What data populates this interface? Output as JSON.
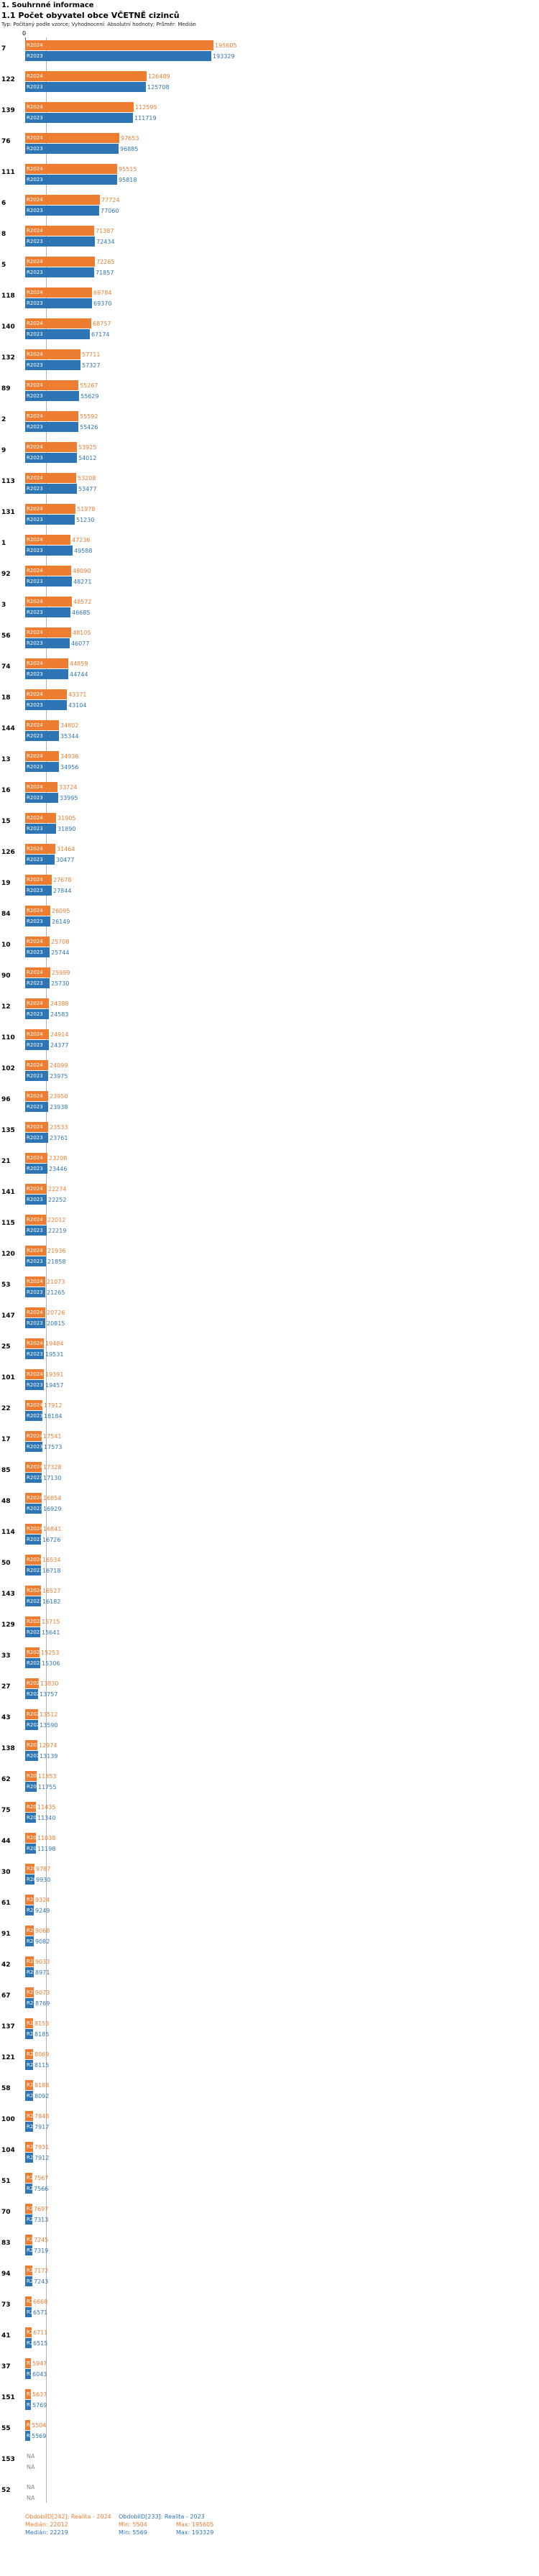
{
  "page": {
    "section_title": "1. Souhrnné informace",
    "chart_title": "1.1 Počet obyvatel obce VČETNĚ cizinců",
    "subtitle": "Typ: Počítaný podle vzorce; Vyhodnocení: Absolutní hodnoty; Průměr: Medián"
  },
  "chart_data": {
    "type": "bar",
    "orientation": "horizontal",
    "title": "1.1 Počet obyvatel obce VČETNĚ cizinců",
    "xlabel": "",
    "ylabel": "ID obce",
    "axis": {
      "zero_label": "0",
      "median_line_value": 22012
    },
    "legend_position": "bottom",
    "grid": false,
    "series": [
      {
        "name": "R2024",
        "period_label": "ObdobíID[242]: Realita - 2024",
        "color": "#ED7D31",
        "median": 22012,
        "min": 5504,
        "max": 195605
      },
      {
        "name": "R2023",
        "period_label": "ObdobíID[233]: Realita - 2023",
        "color": "#2E75B6",
        "median": 22219,
        "min": 5569,
        "max": 193329
      }
    ],
    "rows": [
      {
        "label": "7",
        "r2024": 195605,
        "r2023": 193329
      },
      {
        "label": "122",
        "r2024": 126489,
        "r2023": 125708
      },
      {
        "label": "139",
        "r2024": 112595,
        "r2023": 111719
      },
      {
        "label": "76",
        "r2024": 97653,
        "r2023": 96885
      },
      {
        "label": "111",
        "r2024": 95515,
        "r2023": 95818
      },
      {
        "label": "6",
        "r2024": 77724,
        "r2023": 77060
      },
      {
        "label": "8",
        "r2024": 71387,
        "r2023": 72434
      },
      {
        "label": "5",
        "r2024": 72265,
        "r2023": 71857
      },
      {
        "label": "118",
        "r2024": 69784,
        "r2023": 69370
      },
      {
        "label": "140",
        "r2024": 68757,
        "r2023": 67174
      },
      {
        "label": "132",
        "r2024": 57711,
        "r2023": 57327
      },
      {
        "label": "89",
        "r2024": 55267,
        "r2023": 55629
      },
      {
        "label": "2",
        "r2024": 55592,
        "r2023": 55426
      },
      {
        "label": "9",
        "r2024": 53925,
        "r2023": 54012
      },
      {
        "label": "113",
        "r2024": 53208,
        "r2023": 53477
      },
      {
        "label": "131",
        "r2024": 51978,
        "r2023": 51230
      },
      {
        "label": "1",
        "r2024": 47236,
        "r2023": 49588
      },
      {
        "label": "92",
        "r2024": 48090,
        "r2023": 48271
      },
      {
        "label": "3",
        "r2024": 48572,
        "r2023": 46685
      },
      {
        "label": "56",
        "r2024": 48105,
        "r2023": 46077
      },
      {
        "label": "74",
        "r2024": 44859,
        "r2023": 44744
      },
      {
        "label": "18",
        "r2024": 43371,
        "r2023": 43104
      },
      {
        "label": "144",
        "r2024": 34802,
        "r2023": 35344
      },
      {
        "label": "13",
        "r2024": 34936,
        "r2023": 34956
      },
      {
        "label": "16",
        "r2024": 33724,
        "r2023": 33995
      },
      {
        "label": "15",
        "r2024": 31905,
        "r2023": 31890
      },
      {
        "label": "126",
        "r2024": 31464,
        "r2023": 30477
      },
      {
        "label": "19",
        "r2024": 27678,
        "r2023": 27844
      },
      {
        "label": "84",
        "r2024": 26095,
        "r2023": 26149
      },
      {
        "label": "10",
        "r2024": 25708,
        "r2023": 25744
      },
      {
        "label": "90",
        "r2024": 25999,
        "r2023": 25730
      },
      {
        "label": "12",
        "r2024": 24388,
        "r2023": 24583
      },
      {
        "label": "110",
        "r2024": 24914,
        "r2023": 24377
      },
      {
        "label": "102",
        "r2024": 24099,
        "r2023": 23975
      },
      {
        "label": "96",
        "r2024": 23950,
        "r2023": 23938
      },
      {
        "label": "135",
        "r2024": 23533,
        "r2023": 23761
      },
      {
        "label": "21",
        "r2024": 23208,
        "r2023": 23446
      },
      {
        "label": "141",
        "r2024": 22274,
        "r2023": 22252
      },
      {
        "label": "115",
        "r2024": 22012,
        "r2023": 22219
      },
      {
        "label": "120",
        "r2024": 21936,
        "r2023": 21858
      },
      {
        "label": "53",
        "r2024": 21073,
        "r2023": 21265
      },
      {
        "label": "147",
        "r2024": 20726,
        "r2023": 20815
      },
      {
        "label": "25",
        "r2024": 19484,
        "r2023": 19531
      },
      {
        "label": "101",
        "r2024": 19391,
        "r2023": 19457
      },
      {
        "label": "22",
        "r2024": 17912,
        "r2023": 18184
      },
      {
        "label": "17",
        "r2024": 17541,
        "r2023": 17573
      },
      {
        "label": "85",
        "r2024": 17328,
        "r2023": 17130
      },
      {
        "label": "48",
        "r2024": 16854,
        "r2023": 16929
      },
      {
        "label": "114",
        "r2024": 16841,
        "r2023": 16726
      },
      {
        "label": "50",
        "r2024": 16534,
        "r2023": 16718
      },
      {
        "label": "143",
        "r2024": 16527,
        "r2023": 16182
      },
      {
        "label": "129",
        "r2024": 15715,
        "r2023": 15641
      },
      {
        "label": "33",
        "r2024": 15253,
        "r2023": 15306
      },
      {
        "label": "27",
        "r2024": 13830,
        "r2023": 13757
      },
      {
        "label": "43",
        "r2024": 13512,
        "r2023": 13590
      },
      {
        "label": "138",
        "r2024": 12974,
        "r2023": 13139
      },
      {
        "label": "62",
        "r2024": 11853,
        "r2023": 11755
      },
      {
        "label": "75",
        "r2024": 11435,
        "r2023": 11340
      },
      {
        "label": "44",
        "r2024": 11038,
        "r2023": 11198
      },
      {
        "label": "30",
        "r2024": 9787,
        "r2023": 9930
      },
      {
        "label": "61",
        "r2024": 9324,
        "r2023": 9249
      },
      {
        "label": "91",
        "r2024": 9068,
        "r2023": 9082
      },
      {
        "label": "42",
        "r2024": 9033,
        "r2023": 8971
      },
      {
        "label": "67",
        "r2024": 9073,
        "r2023": 8769
      },
      {
        "label": "137",
        "r2024": 8153,
        "r2023": 8185
      },
      {
        "label": "121",
        "r2024": 8069,
        "r2023": 8115
      },
      {
        "label": "58",
        "r2024": 8188,
        "r2023": 8092
      },
      {
        "label": "100",
        "r2024": 7848,
        "r2023": 7917
      },
      {
        "label": "104",
        "r2024": 7931,
        "r2023": 7912
      },
      {
        "label": "51",
        "r2024": 7567,
        "r2023": 7566
      },
      {
        "label": "70",
        "r2024": 7697,
        "r2023": 7313
      },
      {
        "label": "83",
        "r2024": 7245,
        "r2023": 7319
      },
      {
        "label": "94",
        "r2024": 7172,
        "r2023": 7243
      },
      {
        "label": "73",
        "r2024": 6668,
        "r2023": 6571
      },
      {
        "label": "41",
        "r2024": 6711,
        "r2023": 6515
      },
      {
        "label": "37",
        "r2024": 5947,
        "r2023": 6043
      },
      {
        "label": "151",
        "r2024": 5637,
        "r2023": 5769
      },
      {
        "label": "55",
        "r2024": 5504,
        "r2023": 5569
      },
      {
        "label": "153",
        "r2024": "NA",
        "r2023": "NA"
      },
      {
        "label": "52",
        "r2024": "NA",
        "r2023": "NA"
      }
    ]
  },
  "footer": {
    "period_2024": "ObdobíID[242]: Realita - 2024",
    "period_2023": "ObdobíID[233]: Realita - 2023",
    "stats_2024": {
      "median": "Medián: 22012",
      "min": "Min: 5504",
      "max": "Max: 195605"
    },
    "stats_2023": {
      "median": "Medián: 22219",
      "min": "Min: 5569",
      "max": "Max: 193329"
    }
  }
}
